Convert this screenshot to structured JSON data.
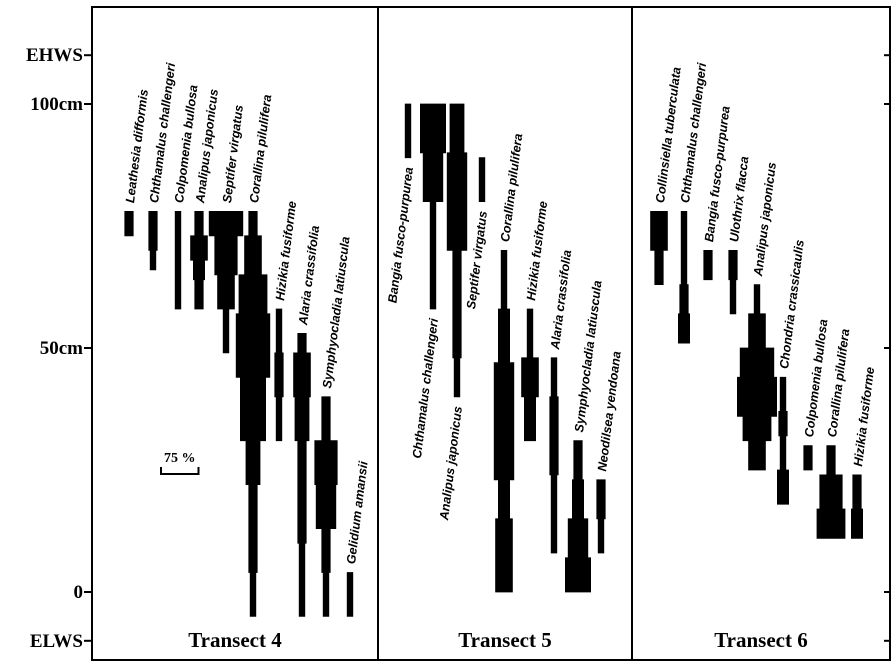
{
  "chart_data": {
    "type": "kite-diagram",
    "y_axis": {
      "unit": "cm",
      "range": [
        -10,
        110
      ],
      "ticks": [
        {
          "value": -10,
          "label": "ELWS"
        },
        {
          "value": 0,
          "label": "0"
        },
        {
          "value": 50,
          "label": "50cm"
        },
        {
          "value": 100,
          "label": "100cm"
        },
        {
          "value": 110,
          "label": "EHWS"
        }
      ]
    },
    "scale_bar": {
      "label": "75 %",
      "value": 75
    },
    "transects": [
      {
        "name": "Transect 4",
        "species": [
          {
            "name": "Leathesia difformis",
            "profile": [
              [
                73,
                3
              ],
              [
                78,
                3
              ]
            ]
          },
          {
            "name": "Chthamalus challengeri",
            "profile": [
              [
                66,
                2
              ],
              [
                70,
                2
              ],
              [
                70,
                3
              ],
              [
                78,
                3
              ]
            ]
          },
          {
            "name": "Colpomenia bullosa",
            "profile": [
              [
                58,
                2
              ],
              [
                78,
                2
              ]
            ]
          },
          {
            "name": "Analipus japonicus",
            "profile": [
              [
                58,
                3
              ],
              [
                64,
                3
              ],
              [
                64,
                4
              ],
              [
                68,
                4
              ],
              [
                68,
                6
              ],
              [
                73,
                6
              ],
              [
                73,
                3
              ],
              [
                78,
                3
              ]
            ]
          },
          {
            "name": "Septifer virgatus",
            "profile": [
              [
                49,
                2
              ],
              [
                58,
                2
              ],
              [
                58,
                6
              ],
              [
                65,
                6
              ],
              [
                65,
                8
              ],
              [
                73,
                8
              ],
              [
                73,
                12
              ],
              [
                78,
                12
              ]
            ]
          },
          {
            "name": "Corallina pilulifera",
            "profile": [
              [
                -5,
                2
              ],
              [
                4,
                2
              ],
              [
                4,
                3
              ],
              [
                22,
                3
              ],
              [
                22,
                5
              ],
              [
                31,
                5
              ],
              [
                31,
                9
              ],
              [
                44,
                9
              ],
              [
                44,
                12
              ],
              [
                57,
                12
              ],
              [
                57,
                10
              ],
              [
                65,
                10
              ],
              [
                65,
                6
              ],
              [
                73,
                6
              ],
              [
                73,
                3
              ],
              [
                78,
                3
              ]
            ]
          },
          {
            "name": "Hizikia fusiforme",
            "profile": [
              [
                31,
                2
              ],
              [
                40,
                2
              ],
              [
                40,
                3
              ],
              [
                49,
                3
              ],
              [
                49,
                2
              ],
              [
                58,
                2
              ]
            ]
          },
          {
            "name": "Alaria crassifolia",
            "profile": [
              [
                -5,
                2
              ],
              [
                10,
                2
              ],
              [
                10,
                3
              ],
              [
                31,
                3
              ],
              [
                31,
                5
              ],
              [
                40,
                5
              ],
              [
                40,
                6
              ],
              [
                49,
                6
              ],
              [
                49,
                3
              ],
              [
                53,
                3
              ]
            ]
          },
          {
            "name": "Symphyocladia latiuscula",
            "profile": [
              [
                -5,
                2
              ],
              [
                4,
                2
              ],
              [
                4,
                3
              ],
              [
                13,
                3
              ],
              [
                13,
                7
              ],
              [
                22,
                7
              ],
              [
                22,
                8
              ],
              [
                31,
                8
              ],
              [
                31,
                3
              ],
              [
                40,
                3
              ]
            ]
          },
          {
            "name": "Gelidium amansii",
            "profile": [
              [
                -5,
                2
              ],
              [
                4,
                2
              ]
            ]
          }
        ]
      },
      {
        "name": "Transect 5",
        "species": [
          {
            "name": "Bangia fusco-purpurea",
            "profile": [
              [
                89,
                2
              ],
              [
                100,
                2
              ]
            ]
          },
          {
            "name": "Chthamalus challengeri",
            "profile": [
              [
                58,
                2
              ],
              [
                80,
                2
              ],
              [
                80,
                7
              ],
              [
                90,
                7
              ],
              [
                90,
                9
              ],
              [
                100,
                9
              ]
            ]
          },
          {
            "name": "Analipus japonicus",
            "profile": [
              [
                40,
                2
              ],
              [
                48,
                2
              ],
              [
                48,
                3
              ],
              [
                70,
                3
              ],
              [
                70,
                7
              ],
              [
                90,
                7
              ],
              [
                90,
                5
              ],
              [
                100,
                5
              ]
            ]
          },
          {
            "name": "Septifer virgatus",
            "profile": [
              [
                80,
                2
              ],
              [
                89,
                2
              ]
            ]
          },
          {
            "name": "Corallina pilulifera",
            "profile": [
              [
                0,
                6
              ],
              [
                15,
                6
              ],
              [
                15,
                4
              ],
              [
                23,
                4
              ],
              [
                23,
                7
              ],
              [
                47,
                7
              ],
              [
                47,
                4
              ],
              [
                58,
                4
              ],
              [
                58,
                2
              ],
              [
                70,
                2
              ]
            ]
          },
          {
            "name": "Hizikia fusiforme",
            "profile": [
              [
                31,
                4
              ],
              [
                40,
                4
              ],
              [
                40,
                6
              ],
              [
                48,
                6
              ],
              [
                48,
                2
              ],
              [
                58,
                2
              ]
            ]
          },
          {
            "name": "Alaria crassifolia",
            "profile": [
              [
                8,
                2
              ],
              [
                24,
                2
              ],
              [
                24,
                3
              ],
              [
                40,
                3
              ],
              [
                40,
                2
              ],
              [
                48,
                2
              ]
            ]
          },
          {
            "name": "Symphyocladia latiuscula",
            "profile": [
              [
                0,
                9
              ],
              [
                7,
                9
              ],
              [
                7,
                7
              ],
              [
                15,
                7
              ],
              [
                15,
                4
              ],
              [
                23,
                4
              ],
              [
                23,
                3
              ],
              [
                31,
                3
              ]
            ]
          },
          {
            "name": "Neodilsea yendoana",
            "profile": [
              [
                8,
                2
              ],
              [
                15,
                2
              ],
              [
                15,
                3
              ],
              [
                23,
                3
              ]
            ]
          }
        ]
      },
      {
        "name": "Transect 6",
        "species": [
          {
            "name": "Collinsiella tuberculata",
            "profile": [
              [
                63,
                3
              ],
              [
                70,
                3
              ],
              [
                70,
                6
              ],
              [
                78,
                6
              ]
            ]
          },
          {
            "name": "Chthamalus challengeri",
            "profile": [
              [
                51,
                4
              ],
              [
                57,
                4
              ],
              [
                57,
                3
              ],
              [
                63,
                3
              ],
              [
                63,
                2
              ],
              [
                78,
                2
              ]
            ]
          },
          {
            "name": "Bangia fusco-purpurea",
            "profile": [
              [
                64,
                3
              ],
              [
                70,
                3
              ]
            ]
          },
          {
            "name": "Ulothrix flacca",
            "profile": [
              [
                57,
                2
              ],
              [
                64,
                2
              ],
              [
                64,
                3
              ],
              [
                70,
                3
              ]
            ]
          },
          {
            "name": "Analipus japonicus",
            "profile": [
              [
                25,
                6
              ],
              [
                31,
                6
              ],
              [
                31,
                10
              ],
              [
                36,
                10
              ],
              [
                36,
                14
              ],
              [
                44,
                14
              ],
              [
                44,
                12
              ],
              [
                50,
                12
              ],
              [
                50,
                6
              ],
              [
                57,
                6
              ],
              [
                57,
                2
              ],
              [
                63,
                2
              ]
            ]
          },
          {
            "name": "Chondria crassicaulis",
            "profile": [
              [
                18,
                4
              ],
              [
                25,
                4
              ],
              [
                25,
                2
              ],
              [
                32,
                2
              ],
              [
                32,
                3
              ],
              [
                37,
                3
              ],
              [
                37,
                2
              ],
              [
                44,
                2
              ]
            ]
          },
          {
            "name": "Colpomenia bullosa",
            "profile": [
              [
                25,
                3
              ],
              [
                30,
                3
              ]
            ]
          },
          {
            "name": "Corallina pilulifera",
            "profile": [
              [
                11,
                10
              ],
              [
                17,
                10
              ],
              [
                17,
                8
              ],
              [
                24,
                8
              ],
              [
                24,
                3
              ],
              [
                30,
                3
              ]
            ]
          },
          {
            "name": "Hizikia fusiforme",
            "profile": [
              [
                11,
                4
              ],
              [
                17,
                4
              ],
              [
                17,
                3
              ],
              [
                24,
                3
              ]
            ]
          }
        ]
      }
    ]
  }
}
